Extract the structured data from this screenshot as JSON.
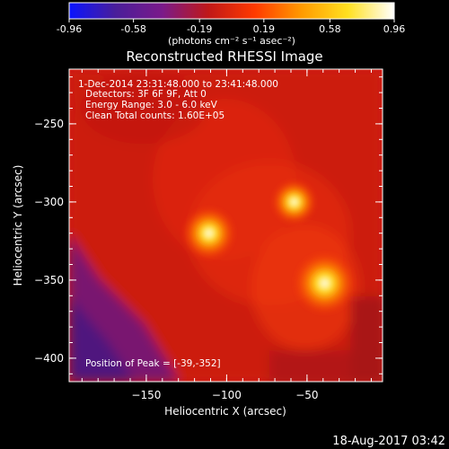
{
  "colorbar": {
    "ticks": [
      "-0.96",
      "-0.58",
      "-0.19",
      "0.19",
      "0.58",
      "0.96"
    ],
    "units_label": "(photons cm⁻² s⁻¹ asec⁻²)",
    "range": [
      -0.96,
      0.96
    ],
    "colormap_stops": [
      "#0a14ff",
      "#4a1e9a",
      "#7a1a8a",
      "#c01818",
      "#ff3a00",
      "#ff9a00",
      "#ffe020",
      "#ffffff"
    ]
  },
  "chart_data": {
    "type": "heatmap",
    "title": "Reconstructed RHESSI Image",
    "xlabel": "Heliocentric X (arcsec)",
    "ylabel": "Heliocentric Y (arcsec)",
    "xlim": [
      -198,
      -3
    ],
    "ylim": [
      -415,
      -215
    ],
    "x_ticks": [
      -150,
      -100,
      -50
    ],
    "y_ticks": [
      -250,
      -300,
      -350,
      -400
    ],
    "annotations": [
      "1-Dec-2014 23:31:48.000 to 23:41:48.000",
      "Detectors: 3F 6F 9F, Att 0",
      "Energy Range: 3.0 - 6.0 keV",
      "Clean    Total counts: 1.60E+05"
    ],
    "peak_label": "Position of Peak = [-39,-352]",
    "sources": [
      {
        "x": -39,
        "y": -352,
        "intensity": 0.96
      },
      {
        "x": -111,
        "y": -320,
        "intensity": 0.75
      },
      {
        "x": -58,
        "y": -300,
        "intensity": 0.55
      }
    ]
  },
  "footer": {
    "date": "18-Aug-2017 03:42"
  }
}
